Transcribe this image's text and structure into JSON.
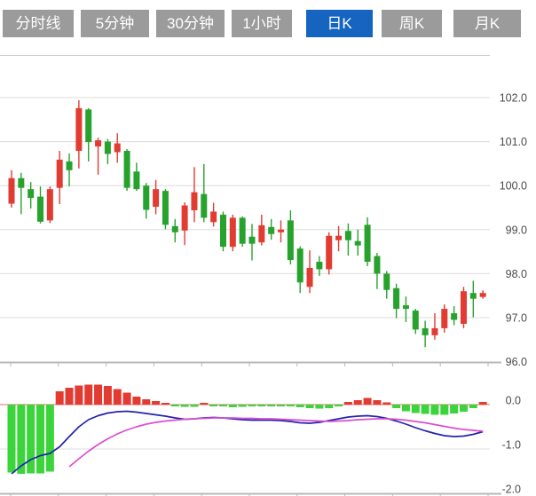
{
  "toolbar": {
    "tabs": [
      {
        "label": "分时线",
        "active": false
      },
      {
        "label": "5分钟",
        "active": false
      },
      {
        "label": "30分钟",
        "active": false
      },
      {
        "label": "1小时",
        "active": false
      },
      {
        "label": "日K",
        "active": true
      },
      {
        "label": "周K",
        "active": false
      },
      {
        "label": "月K",
        "active": false
      }
    ]
  },
  "colors": {
    "up": "#e23b32",
    "down": "#27a22d",
    "macd_bar_up": "#e23b32",
    "macd_bar_down": "#3bd53b",
    "dif_line": "#2323ad",
    "dea_line": "#d94ed1",
    "zero_line": "#e76c6c",
    "tab_bg": "#9b9b9b",
    "tab_active_bg": "#1565c0",
    "tab_text": "#ffffff",
    "axis_text": "#4a4a4a",
    "grid": "#dcdcdc",
    "axis": "#b8b8b8"
  },
  "chart_data": [
    {
      "type": "candlestick",
      "interval": "日K",
      "ylim": [
        96.0,
        103.0
      ],
      "grid": true,
      "yticks": [
        {
          "value": 102.0,
          "label": "102.0"
        },
        {
          "value": 101.0,
          "label": "101.0"
        },
        {
          "value": 100.0,
          "label": "100.0"
        },
        {
          "value": 99.0,
          "label": "99.0"
        },
        {
          "value": 98.0,
          "label": "98.0"
        },
        {
          "value": 97.0,
          "label": "97.0"
        },
        {
          "value": 96.0,
          "label": "96.0"
        }
      ],
      "candles_format": [
        "open",
        "high",
        "low",
        "close"
      ],
      "candles": [
        [
          99.59,
          100.35,
          99.5,
          100.17
        ],
        [
          100.17,
          100.29,
          99.35,
          99.95
        ],
        [
          99.92,
          100.08,
          99.48,
          99.72
        ],
        [
          99.75,
          99.98,
          99.14,
          99.18
        ],
        [
          99.21,
          99.98,
          99.15,
          99.92
        ],
        [
          99.95,
          100.79,
          99.58,
          100.59
        ],
        [
          100.55,
          100.73,
          99.98,
          100.35
        ],
        [
          100.79,
          101.94,
          100.39,
          101.76
        ],
        [
          101.73,
          101.76,
          100.55,
          100.99
        ],
        [
          100.89,
          101.09,
          100.25,
          101.03
        ],
        [
          101.0,
          101.06,
          100.49,
          100.72
        ],
        [
          100.76,
          101.19,
          100.52,
          100.96
        ],
        [
          100.79,
          100.83,
          99.88,
          99.95
        ],
        [
          100.32,
          100.52,
          99.88,
          99.92
        ],
        [
          100.0,
          100.06,
          99.25,
          99.45
        ],
        [
          99.52,
          100.13,
          99.35,
          99.92
        ],
        [
          99.88,
          99.92,
          99.01,
          99.11
        ],
        [
          99.08,
          99.24,
          98.71,
          98.94
        ],
        [
          98.98,
          99.62,
          98.65,
          99.55
        ],
        [
          99.44,
          100.42,
          99.17,
          99.85
        ],
        [
          99.81,
          100.49,
          99.17,
          99.27
        ],
        [
          99.17,
          99.61,
          99.07,
          99.41
        ],
        [
          99.34,
          99.41,
          98.51,
          98.61
        ],
        [
          98.61,
          99.34,
          98.51,
          99.27
        ],
        [
          99.27,
          99.3,
          98.61,
          98.68
        ],
        [
          98.84,
          99.13,
          98.3,
          98.68
        ],
        [
          98.71,
          99.34,
          98.64,
          99.1
        ],
        [
          99.06,
          99.24,
          98.77,
          98.9
        ],
        [
          98.94,
          99.21,
          98.71,
          99.0
        ],
        [
          99.21,
          99.44,
          98.21,
          98.31
        ],
        [
          98.57,
          98.62,
          97.56,
          97.8
        ],
        [
          97.7,
          98.53,
          97.56,
          98.13
        ],
        [
          98.27,
          98.4,
          97.95,
          98.1
        ],
        [
          98.1,
          98.94,
          97.98,
          98.86
        ],
        [
          98.76,
          99.08,
          98.51,
          98.86
        ],
        [
          98.97,
          99.14,
          98.41,
          98.76
        ],
        [
          98.74,
          99.0,
          98.41,
          98.64
        ],
        [
          99.11,
          99.28,
          98.17,
          98.27
        ],
        [
          98.4,
          98.47,
          97.65,
          98.0
        ],
        [
          98.0,
          98.06,
          97.43,
          97.63
        ],
        [
          97.67,
          97.77,
          96.99,
          97.2
        ],
        [
          97.28,
          97.48,
          96.9,
          97.2
        ],
        [
          97.16,
          97.2,
          96.63,
          96.73
        ],
        [
          96.76,
          96.93,
          96.33,
          96.6
        ],
        [
          96.6,
          97.1,
          96.5,
          96.76
        ],
        [
          96.76,
          97.3,
          96.66,
          97.2
        ],
        [
          97.1,
          97.26,
          96.83,
          96.95
        ],
        [
          96.86,
          97.7,
          96.76,
          97.6
        ],
        [
          97.56,
          97.84,
          97.01,
          97.43
        ],
        [
          97.47,
          97.62,
          97.43,
          97.56
        ]
      ]
    },
    {
      "type": "bar",
      "name": "MACD",
      "ylim": [
        -2.05,
        0.5
      ],
      "grid": true,
      "yticks": [
        {
          "value": 0.0,
          "label": "0.0"
        },
        {
          "value": -1.0,
          "label": "-1.0"
        },
        {
          "value": -2.0,
          "label": "-2.0"
        }
      ],
      "histogram": [
        -1.53,
        -1.56,
        -1.55,
        -1.55,
        -1.51,
        0.3,
        0.38,
        0.43,
        0.45,
        0.45,
        0.42,
        0.35,
        0.27,
        0.18,
        0.12,
        0.08,
        0.04,
        -0.03,
        -0.05,
        -0.05,
        0.03,
        -0.01,
        -0.04,
        -0.06,
        -0.05,
        -0.03,
        -0.01,
        -0.04,
        -0.02,
        -0.03,
        -0.06,
        -0.08,
        -0.09,
        -0.08,
        -0.03,
        0.06,
        0.1,
        0.15,
        0.1,
        0.05,
        -0.08,
        -0.15,
        -0.19,
        -0.21,
        -0.23,
        -0.23,
        -0.2,
        -0.16,
        -0.08,
        0.06
      ],
      "series": [
        {
          "name": "DIF",
          "color_key": "dif_line",
          "values": [
            -1.56,
            -1.38,
            -1.24,
            -1.15,
            -1.1,
            -0.95,
            -0.72,
            -0.5,
            -0.34,
            -0.25,
            -0.19,
            -0.16,
            -0.15,
            -0.17,
            -0.2,
            -0.23,
            -0.26,
            -0.3,
            -0.33,
            -0.32,
            -0.3,
            -0.29,
            -0.3,
            -0.32,
            -0.34,
            -0.35,
            -0.35,
            -0.35,
            -0.36,
            -0.38,
            -0.41,
            -0.42,
            -0.4,
            -0.36,
            -0.32,
            -0.28,
            -0.26,
            -0.25,
            -0.27,
            -0.31,
            -0.37,
            -0.44,
            -0.52,
            -0.59,
            -0.65,
            -0.7,
            -0.72,
            -0.71,
            -0.67,
            -0.61
          ]
        },
        {
          "name": "DEA",
          "color_key": "dea_line",
          "values": [
            null,
            null,
            null,
            null,
            null,
            null,
            -1.4,
            -1.22,
            -1.05,
            -0.9,
            -0.77,
            -0.66,
            -0.57,
            -0.5,
            -0.44,
            -0.4,
            -0.37,
            -0.35,
            -0.33,
            -0.32,
            -0.31,
            -0.3,
            -0.3,
            -0.3,
            -0.31,
            -0.31,
            -0.32,
            -0.32,
            -0.33,
            -0.34,
            -0.35,
            -0.36,
            -0.37,
            -0.38,
            -0.37,
            -0.36,
            -0.34,
            -0.33,
            -0.32,
            -0.32,
            -0.33,
            -0.35,
            -0.38,
            -0.41,
            -0.45,
            -0.49,
            -0.53,
            -0.56,
            -0.58,
            -0.6
          ]
        }
      ]
    }
  ]
}
